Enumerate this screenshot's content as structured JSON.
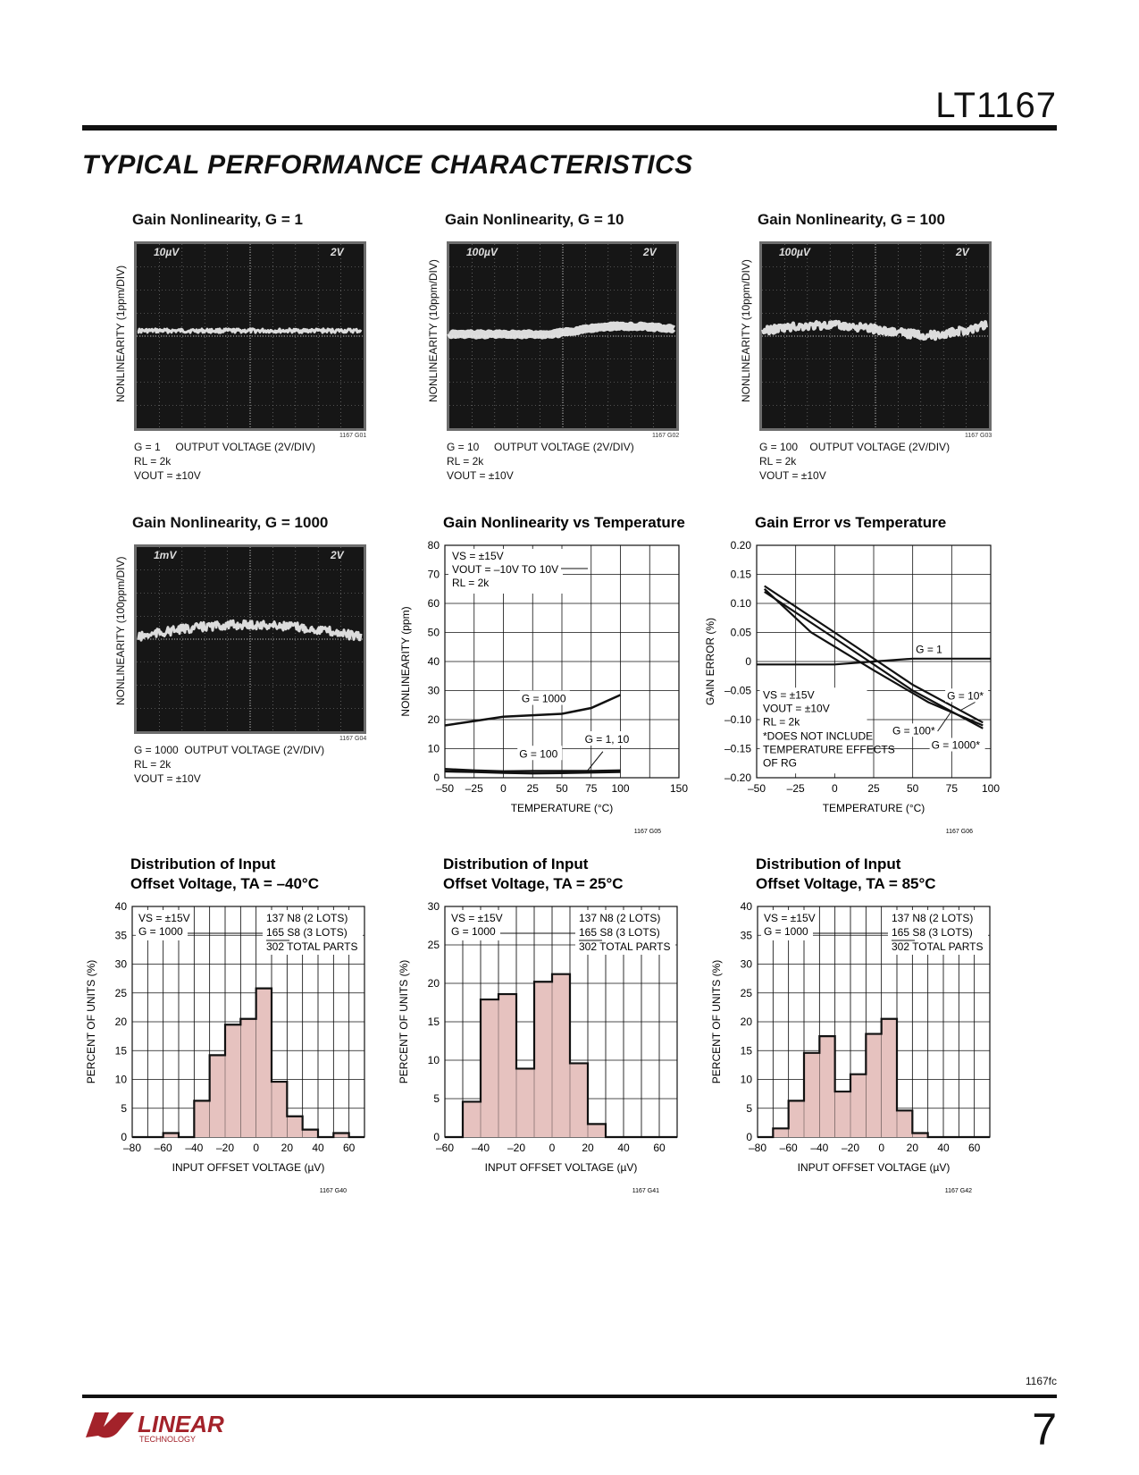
{
  "header": {
    "part_number": "LT1167",
    "section_title": "TYPICAL PERFORMANCE CHARACTERISTICS"
  },
  "footer": {
    "doc_code": "1167fc",
    "page_number": "7",
    "logo_text_main": "LINEAR",
    "logo_text_sub": "TECHNOLOGY"
  },
  "scopes": [
    {
      "title": "Gain Nonlinearity, G = 1",
      "ylabel": "NONLINEARITY (1ppm/DIV)",
      "scale_left": "10µV",
      "scale_right": "2V",
      "cap1": "G = 1     OUTPUT VOLTAGE (2V/DIV)",
      "cap2": "RL = 2k",
      "cap3": "VOUT = ±10V",
      "graph_id": "1167 G01"
    },
    {
      "title": "Gain Nonlinearity, G = 10",
      "ylabel": "NONLINEARITY (10ppm/DIV)",
      "scale_left": "100µV",
      "scale_right": "2V",
      "cap1": "G = 10     OUTPUT VOLTAGE (2V/DIV)",
      "cap2": "RL = 2k",
      "cap3": "VOUT = ±10V",
      "graph_id": "1167 G02"
    },
    {
      "title": "Gain Nonlinearity, G = 100",
      "ylabel": "NONLINEARITY (10ppm/DIV)",
      "scale_left": "100µV",
      "scale_right": "2V",
      "cap1": "G = 100    OUTPUT VOLTAGE (2V/DIV)",
      "cap2": "RL = 2k",
      "cap3": "VOUT = ±10V",
      "graph_id": "1167 G03"
    },
    {
      "title": "Gain Nonlinearity, G = 1000",
      "ylabel": "NONLINEARITY (100ppm/DIV)",
      "scale_left": "1mV",
      "scale_right": "2V",
      "cap1": "G = 1000  OUTPUT VOLTAGE (2V/DIV)",
      "cap2": "RL = 2k",
      "cap3": "VOUT = ±10V",
      "graph_id": "1167 G04"
    }
  ],
  "chart_data": [
    {
      "type": "line",
      "title": "Gain Nonlinearity vs Temperature",
      "xlabel": "TEMPERATURE (°C)",
      "ylabel": "NONLINEARITY (ppm)",
      "xlim": [
        -50,
        150
      ],
      "ylim": [
        0,
        80
      ],
      "xticks": [
        -50,
        -25,
        0,
        25,
        50,
        75,
        100,
        150
      ],
      "yticks": [
        0,
        10,
        20,
        30,
        40,
        50,
        60,
        70,
        80
      ],
      "grid": true,
      "notes": [
        "VS = ±15V",
        "VOUT = –10V TO 10V",
        "RL = 2k"
      ],
      "series": [
        {
          "name": "G = 1000",
          "x": [
            -50,
            -25,
            0,
            25,
            50,
            75,
            100
          ],
          "y": [
            18,
            19.5,
            21,
            21.5,
            22,
            24,
            28.5
          ]
        },
        {
          "name": "G = 100",
          "x": [
            -50,
            -25,
            0,
            25,
            50,
            75,
            100
          ],
          "y": [
            2.2,
            2,
            1.7,
            1.5,
            1.6,
            1.8,
            2
          ]
        },
        {
          "name": "G = 1, 10",
          "x": [
            -50,
            -25,
            0,
            25,
            50,
            75,
            100
          ],
          "y": [
            3,
            2.5,
            2.2,
            2.3,
            2.3,
            2.3,
            2.5
          ]
        }
      ],
      "graph_id": "1167 G05"
    },
    {
      "type": "line",
      "title": "Gain Error vs Temperature",
      "xlabel": "TEMPERATURE (°C)",
      "ylabel": "GAIN ERROR (%)",
      "xlim": [
        -50,
        100
      ],
      "ylim": [
        -0.2,
        0.2
      ],
      "xticks": [
        -50,
        -25,
        0,
        25,
        50,
        75,
        100
      ],
      "yticks": [
        -0.2,
        -0.15,
        -0.1,
        -0.05,
        0,
        0.05,
        0.1,
        0.15,
        0.2
      ],
      "ytick_labels": [
        "–0.20",
        "–0.15",
        "–0.10",
        "–0.05",
        "0",
        "0.05",
        "0.10",
        "0.15",
        "0.20"
      ],
      "grid": true,
      "notes": [
        "VS = ±15V",
        "VOUT = ±10V",
        "RL = 2k",
        "*DOES NOT INCLUDE",
        "TEMPERATURE EFFECTS",
        "OF RG"
      ],
      "series": [
        {
          "name": "G = 1",
          "x": [
            -50,
            0,
            25,
            50,
            100
          ],
          "y": [
            -0.005,
            -0.005,
            0,
            0.005,
            0.005
          ]
        },
        {
          "name": "G = 10*",
          "x": [
            -45,
            0,
            50,
            95
          ],
          "y": [
            0.13,
            0.05,
            -0.04,
            -0.105
          ]
        },
        {
          "name": "G = 100*",
          "x": [
            -45,
            -15,
            25,
            60,
            95
          ],
          "y": [
            0.125,
            0.05,
            -0.015,
            -0.07,
            -0.11
          ]
        },
        {
          "name": "G = 1000*",
          "x": [
            -45,
            0,
            50,
            95
          ],
          "y": [
            0.12,
            0.04,
            -0.05,
            -0.115
          ]
        }
      ],
      "graph_id": "1167 G06"
    },
    {
      "type": "bar",
      "title": "Distribution of Input Offset Voltage, TA = –40°C",
      "xlabel": "INPUT OFFSET VOLTAGE (µV)",
      "ylabel": "PERCENT OF UNITS (%)",
      "xlim": [
        -80,
        70
      ],
      "ylim": [
        0,
        40
      ],
      "xticks": [
        -80,
        -60,
        -40,
        -20,
        0,
        20,
        40,
        60
      ],
      "yticks": [
        0,
        5,
        10,
        15,
        20,
        25,
        30,
        35,
        40
      ],
      "grid": true,
      "notes": [
        "VS = ±15V",
        "G = 1000"
      ],
      "legend": [
        "137 N8 (2 LOTS)",
        "165 S8 (3 LOTS)",
        "302 TOTAL PARTS"
      ],
      "bin_edges": [
        -80,
        -70,
        -60,
        -50,
        -40,
        -30,
        -20,
        -10,
        0,
        10,
        20,
        30,
        40,
        50,
        60,
        70
      ],
      "values": [
        0,
        0,
        0.7,
        0,
        6.3,
        14.2,
        19.5,
        20.5,
        25.8,
        9.6,
        3.6,
        1.3,
        0,
        0.7,
        0
      ],
      "graph_id": "1167 G40"
    },
    {
      "type": "bar",
      "title": "Distribution of Input Offset Voltage, TA = 25°C",
      "xlabel": "INPUT OFFSET VOLTAGE (µV)",
      "ylabel": "PERCENT OF UNITS (%)",
      "xlim": [
        -60,
        70
      ],
      "ylim": [
        0,
        30
      ],
      "xticks": [
        -60,
        -40,
        -20,
        0,
        20,
        40,
        60
      ],
      "yticks": [
        0,
        5,
        10,
        15,
        20,
        25,
        30
      ],
      "grid": true,
      "notes": [
        "VS = ±15V",
        "G = 1000"
      ],
      "legend": [
        "137 N8 (2 LOTS)",
        "165 S8 (3 LOTS)",
        "302 TOTAL PARTS"
      ],
      "bin_edges": [
        -60,
        -50,
        -40,
        -30,
        -20,
        -10,
        0,
        10,
        20,
        30,
        40,
        50,
        60,
        70
      ],
      "values": [
        0,
        4.6,
        17.9,
        18.6,
        8.9,
        20.2,
        21.2,
        9.6,
        1.7,
        0,
        0,
        0,
        0
      ],
      "graph_id": "1167 G41"
    },
    {
      "type": "bar",
      "title": "Distribution of Input Offset Voltage, TA = 85°C",
      "xlabel": "INPUT OFFSET VOLTAGE (µV)",
      "ylabel": "PERCENT OF UNITS (%)",
      "xlim": [
        -80,
        70
      ],
      "ylim": [
        0,
        40
      ],
      "xticks": [
        -80,
        -60,
        -40,
        -20,
        0,
        20,
        40,
        60
      ],
      "yticks": [
        0,
        5,
        10,
        15,
        20,
        25,
        30,
        35,
        40
      ],
      "grid": true,
      "notes": [
        "VS = ±15V",
        "G = 1000"
      ],
      "legend": [
        "137 N8 (2 LOTS)",
        "165 S8 (3 LOTS)",
        "302 TOTAL PARTS"
      ],
      "bin_edges": [
        -80,
        -70,
        -60,
        -50,
        -40,
        -30,
        -20,
        -10,
        0,
        10,
        20,
        30,
        40,
        50,
        60,
        70
      ],
      "values": [
        0,
        1.5,
        6.3,
        14.6,
        17.5,
        7.9,
        10.9,
        17.9,
        20.5,
        4.6,
        0.7,
        0,
        0,
        0,
        0
      ],
      "graph_id": "1167 G42"
    }
  ],
  "colors": {
    "bar_fill": "#e6c2bf",
    "ink": "#111111",
    "scope_bg": "#161616",
    "scope_grid": "#8a8a8a",
    "scope_trace": "#f2f2f2"
  }
}
